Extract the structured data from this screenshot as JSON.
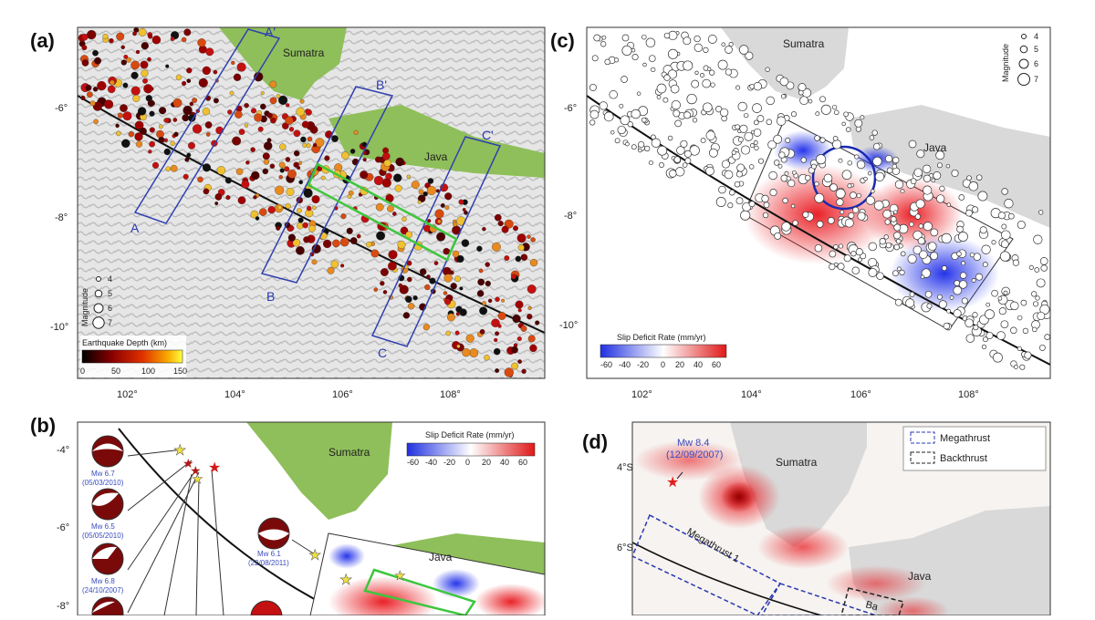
{
  "figure": {
    "panel_a": {
      "label": "(a)",
      "places": [
        "Sumatra",
        "Java"
      ],
      "sections": [
        "A",
        "A'",
        "B",
        "B'",
        "C",
        "C'"
      ],
      "lat_ticks": [
        "-6°",
        "-8°",
        "-10°"
      ],
      "lon_ticks": [
        "102°",
        "104°",
        "106°",
        "108°"
      ],
      "magnitude_title": "Magnitude",
      "magnitudes": [
        "4",
        "5",
        "6",
        "7"
      ],
      "depth_title": "Earthquake Depth (km)",
      "depth_ticks": [
        "0",
        "50",
        "100",
        "150"
      ]
    },
    "panel_b": {
      "label": "(b)",
      "places": [
        "Sumatra",
        "Java"
      ],
      "slip_title": "Slip Deficit Rate (mm/yr)",
      "slip_ticks": [
        "-60",
        "-40",
        "-20",
        "0",
        "20",
        "40",
        "60"
      ],
      "lat_ticks": [
        "-4°",
        "-6°",
        "-8°"
      ],
      "events": [
        {
          "mag": "Mw 6.7",
          "date": "(05/03/2010)"
        },
        {
          "mag": "Mw 6.5",
          "date": "(05/05/2010)"
        },
        {
          "mag": "Mw 6.8",
          "date": "(24/10/2007)"
        },
        {
          "mag": "Mw 6.1",
          "date": "(22/08/2011)"
        }
      ]
    },
    "panel_c": {
      "label": "(c)",
      "places": [
        "Sumatra",
        "Java"
      ],
      "lat_ticks": [
        "-6°",
        "-8°",
        "-10°"
      ],
      "lon_ticks": [
        "102°",
        "104°",
        "106°",
        "108°"
      ],
      "magnitude_title": "Magnitude",
      "magnitudes": [
        "4",
        "5",
        "6",
        "7"
      ],
      "slip_title": "Slip Deficit Rate (mm/yr)",
      "slip_ticks": [
        "-60",
        "-40",
        "-20",
        "0",
        "20",
        "40",
        "60"
      ]
    },
    "panel_d": {
      "label": "(d)",
      "places": [
        "Sumatra",
        "Java"
      ],
      "lat_ticks": [
        "4°S",
        "6°S"
      ],
      "event_mag": "Mw 8.4",
      "event_date": "(12/09/2007)",
      "legend": [
        "Megathrust",
        "Backthrust"
      ],
      "segment_label": "Megathrust 1",
      "segment_label_2": "Ba"
    },
    "colors": {
      "land": "#d9d9d9",
      "land_green": "#8fbf5a",
      "trench": "#111111",
      "section_box": "#3040b0",
      "highlight_box": "#3ec63e",
      "slip_positive": "#e0242a",
      "slip_negative": "#2838e0"
    }
  }
}
